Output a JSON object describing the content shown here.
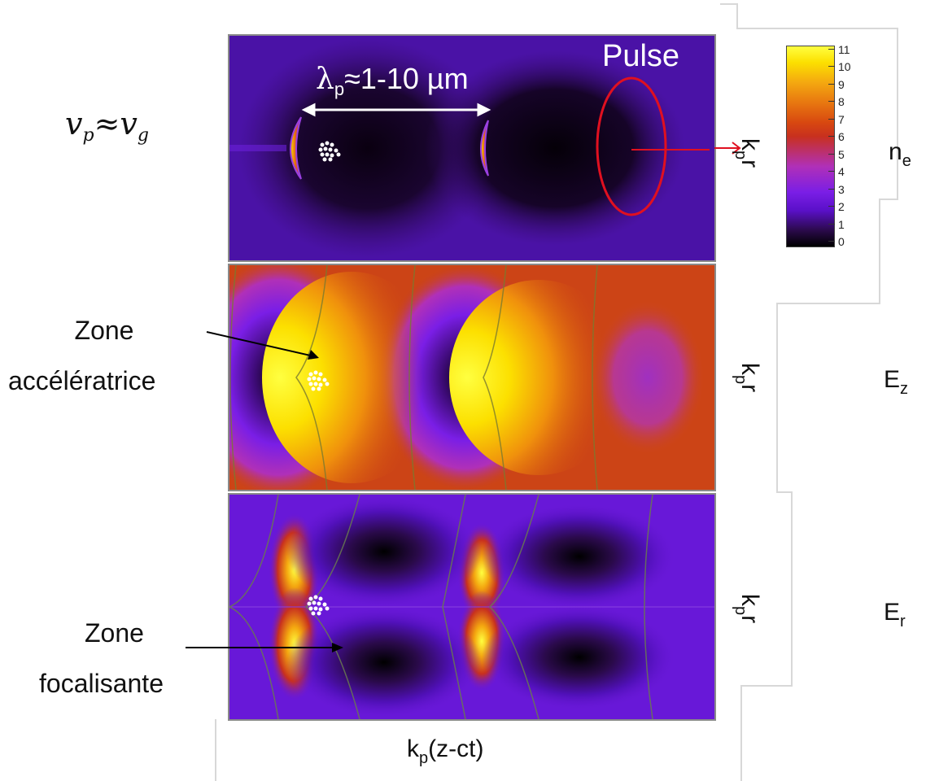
{
  "top_left_formula": {
    "v1": "v",
    "s1": "p",
    "approx": "≈",
    "v2": "v",
    "s2": "g"
  },
  "wavelength": {
    "lambda": "λ",
    "sub": "p",
    "rest": "≈1-10 µm"
  },
  "pulse_label": "Pulse",
  "axis_vertical": {
    "main": "k",
    "sub": "p",
    "tail": "r"
  },
  "axis_bottom": {
    "main": "k",
    "sub": "p",
    "tail": "(z-ct)"
  },
  "panel_labels": {
    "ne": {
      "main": "n",
      "sub": "e"
    },
    "ez": {
      "main": "E",
      "sub": "z"
    },
    "er": {
      "main": "E",
      "sub": "r"
    }
  },
  "zone_acc": {
    "line1": "Zone",
    "line2": "accélératrice"
  },
  "zone_foc": {
    "line1": "Zone",
    "line2": "focalisante"
  },
  "colorbar": {
    "ticks": [
      "11",
      "10",
      "9",
      "8",
      "7",
      "6",
      "5",
      "4",
      "3",
      "2",
      "1",
      "0"
    ],
    "colors": [
      "#000000",
      "#2a0a4a",
      "#5a10c8",
      "#7a1ee6",
      "#b030b8",
      "#c8301e",
      "#d84810",
      "#e87810",
      "#f4a810",
      "#fce000",
      "#ffff40"
    ]
  },
  "colors": {
    "pulse_ellipse": "#e01020",
    "arrow_white": "#ffffff",
    "frame": "#d8d8d8"
  }
}
